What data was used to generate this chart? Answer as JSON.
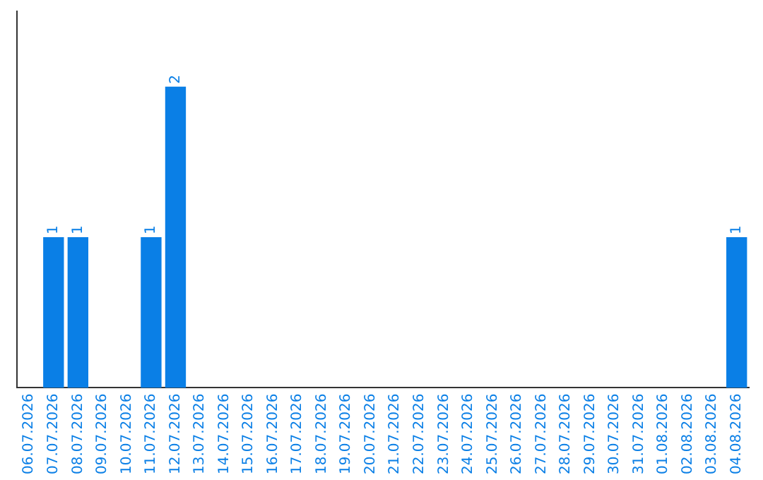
{
  "chart_data": {
    "type": "bar",
    "categories": [
      "06.07.2026",
      "07.07.2026",
      "08.07.2026",
      "09.07.2026",
      "10.07.2026",
      "11.07.2026",
      "12.07.2026",
      "13.07.2026",
      "14.07.2026",
      "15.07.2026",
      "16.07.2026",
      "17.07.2026",
      "18.07.2026",
      "19.07.2026",
      "20.07.2026",
      "21.07.2026",
      "22.07.2026",
      "23.07.2026",
      "24.07.2026",
      "25.07.2026",
      "26.07.2026",
      "27.07.2026",
      "28.07.2026",
      "29.07.2026",
      "30.07.2026",
      "31.07.2026",
      "01.08.2026",
      "02.08.2026",
      "03.08.2026",
      "04.08.2026"
    ],
    "values": [
      0,
      1,
      1,
      0,
      0,
      1,
      2,
      0,
      0,
      0,
      0,
      0,
      0,
      0,
      0,
      0,
      0,
      0,
      0,
      0,
      0,
      0,
      0,
      0,
      0,
      0,
      0,
      0,
      0,
      1
    ],
    "value_labels": [
      null,
      "1",
      "1",
      null,
      null,
      "1",
      "2",
      null,
      null,
      null,
      null,
      null,
      null,
      null,
      null,
      null,
      null,
      null,
      null,
      null,
      null,
      null,
      null,
      null,
      null,
      null,
      null,
      null,
      null,
      "1"
    ],
    "color": "#0a7fe6",
    "grid": false,
    "legend": false
  }
}
